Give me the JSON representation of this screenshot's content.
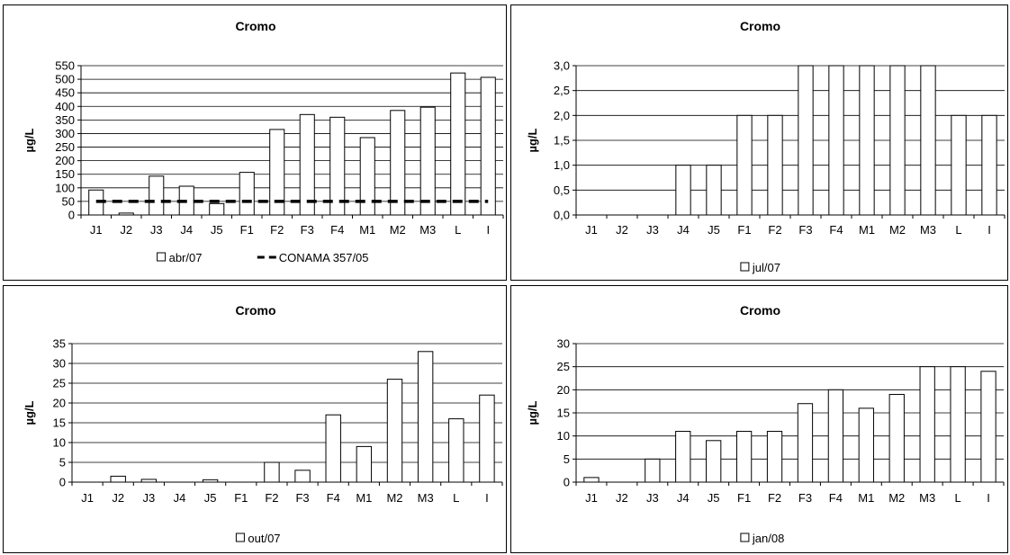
{
  "chart_data": [
    {
      "type": "bar",
      "title": "Cromo",
      "ylabel": "µg/L",
      "xlabel": "",
      "categories": [
        "J1",
        "J2",
        "J3",
        "J4",
        "J5",
        "F1",
        "F2",
        "F3",
        "F4",
        "M1",
        "M2",
        "M3",
        "L",
        "I"
      ],
      "ylim": [
        0,
        550
      ],
      "yticks": [
        "0",
        "50",
        "100",
        "150",
        "200",
        "250",
        "300",
        "350",
        "400",
        "450",
        "500",
        "550"
      ],
      "grid": true,
      "legend_position": "bottom",
      "series": [
        {
          "name": "abr/07",
          "type": "bar",
          "color": "#ffffff",
          "values": [
            92,
            7,
            143,
            106,
            42,
            157,
            315,
            370,
            360,
            285,
            385,
            397,
            523,
            507
          ]
        },
        {
          "name": "CONAMA 357/05",
          "type": "line",
          "style": "dashed",
          "color": "#000000",
          "values": [
            50,
            50,
            50,
            50,
            50,
            50,
            50,
            50,
            50,
            50,
            50,
            50,
            50,
            50
          ]
        }
      ]
    },
    {
      "type": "bar",
      "title": "Cromo",
      "ylabel": "µg/L",
      "xlabel": "",
      "categories": [
        "J1",
        "J2",
        "J3",
        "J4",
        "J5",
        "F1",
        "F2",
        "F3",
        "F4",
        "M1",
        "M2",
        "M3",
        "L",
        "I"
      ],
      "ylim": [
        0,
        3
      ],
      "yticks": [
        "0,0",
        "0,5",
        "1,0",
        "1,5",
        "2,0",
        "2,5",
        "3,0"
      ],
      "grid": true,
      "legend_position": "bottom",
      "series": [
        {
          "name": "jul/07",
          "type": "bar",
          "color": "#ffffff",
          "values": [
            0,
            0,
            0,
            1,
            1,
            2,
            2,
            3,
            3,
            3,
            3,
            3,
            2,
            2
          ]
        }
      ]
    },
    {
      "type": "bar",
      "title": "Cromo",
      "ylabel": "µg/L",
      "xlabel": "",
      "categories": [
        "J1",
        "J2",
        "J3",
        "J4",
        "J5",
        "F1",
        "F2",
        "F3",
        "F4",
        "M1",
        "M2",
        "M3",
        "L",
        "I"
      ],
      "ylim": [
        0,
        35
      ],
      "yticks": [
        "0",
        "5",
        "10",
        "15",
        "20",
        "25",
        "30",
        "35"
      ],
      "grid": true,
      "legend_position": "bottom",
      "series": [
        {
          "name": "out/07",
          "type": "bar",
          "color": "#ffffff",
          "values": [
            0,
            1.5,
            0.7,
            0,
            0.6,
            0,
            5,
            3,
            17,
            9,
            26,
            33,
            16,
            22
          ]
        }
      ]
    },
    {
      "type": "bar",
      "title": "Cromo",
      "ylabel": "µg/L",
      "xlabel": "",
      "categories": [
        "J1",
        "J2",
        "J3",
        "J4",
        "J5",
        "F1",
        "F2",
        "F3",
        "F4",
        "M1",
        "M2",
        "M3",
        "L",
        "I"
      ],
      "ylim": [
        0,
        30
      ],
      "yticks": [
        "0",
        "5",
        "10",
        "15",
        "20",
        "25",
        "30"
      ],
      "grid": true,
      "legend_position": "bottom",
      "series": [
        {
          "name": "jan/08",
          "type": "bar",
          "color": "#ffffff",
          "values": [
            1,
            0,
            5,
            11,
            9,
            11,
            11,
            17,
            20,
            16,
            19,
            25,
            25,
            24
          ]
        }
      ]
    }
  ]
}
